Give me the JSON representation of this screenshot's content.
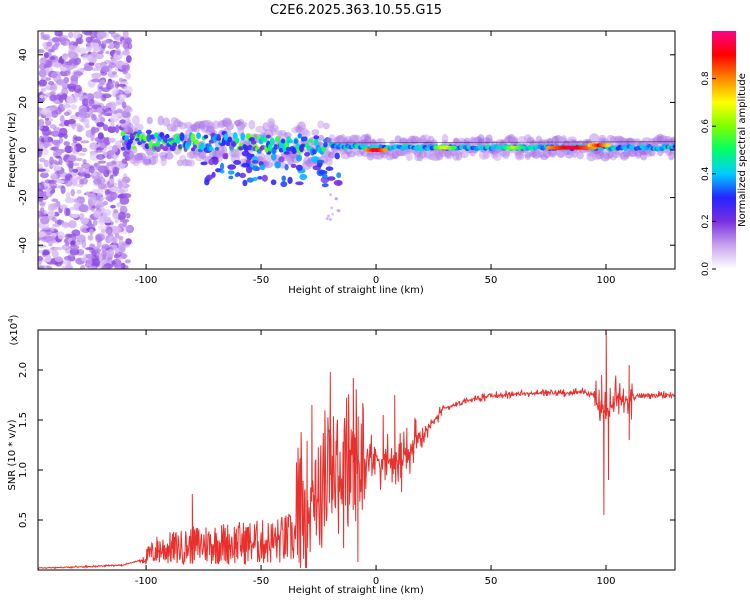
{
  "title": "C2E6.2025.363.10.55.G15",
  "chart_data": [
    {
      "type": "heatmap",
      "xlabel": "Height of straight line (km)",
      "ylabel": "Frequency (Hz)",
      "xlim": [
        -147,
        130
      ],
      "ylim": [
        -50,
        50
      ],
      "xticks": [
        -100,
        -50,
        0,
        50,
        100
      ],
      "yticks": [
        -40,
        -20,
        0,
        20,
        40
      ],
      "colorbar": {
        "label": "Normalized spectral amplitude",
        "range": [
          0,
          1
        ],
        "ticks": [
          0.0,
          0.2,
          0.4,
          0.6,
          0.8
        ],
        "colors": [
          "#ffffff",
          "#c9a2ef",
          "#7a2fe0",
          "#2424ff",
          "#00ccff",
          "#00ff66",
          "#7fff00",
          "#ffff00",
          "#ff8800",
          "#ff0000",
          "#ff0088"
        ]
      },
      "band_center_hz": [
        [
          -147,
          5
        ],
        [
          -110,
          4
        ],
        [
          -60,
          3
        ],
        [
          -25,
          2
        ],
        [
          0,
          1
        ],
        [
          50,
          1
        ],
        [
          100,
          1
        ],
        [
          130,
          1
        ]
      ],
      "band_peaks": [
        {
          "x": 0,
          "freq_hz": 0,
          "amplitude": 0.95
        },
        {
          "x": 30,
          "freq_hz": 1,
          "amplitude": 0.7
        },
        {
          "x": 60,
          "freq_hz": 1,
          "amplitude": 0.65
        },
        {
          "x": 85,
          "freq_hz": 1,
          "amplitude": 0.95
        },
        {
          "x": 97,
          "freq_hz": 2,
          "amplitude": 0.9
        }
      ]
    },
    {
      "type": "line",
      "xlabel": "Height of straight line (km)",
      "ylabel": "SNR (10 * v/v)",
      "y_scale_label": "(x10",
      "y_scale_exponent": "4",
      "xlim": [
        -147,
        130
      ],
      "ylim": [
        0,
        2.4
      ],
      "xticks": [
        -100,
        -50,
        0,
        50,
        100
      ],
      "yticks": [
        0.5,
        1.0,
        1.5,
        2.0
      ],
      "ytick_labels": [
        "0.5",
        "1.0",
        "1.5",
        "2.0"
      ],
      "series": [
        {
          "name": "SNR",
          "color": "#e8302d",
          "points": [
            [
              -147,
              0.02
            ],
            [
              -130,
              0.03
            ],
            [
              -110,
              0.05
            ],
            [
              -102,
              0.1
            ],
            [
              -95,
              0.28
            ],
            [
              -85,
              0.32
            ],
            [
              -75,
              0.38
            ],
            [
              -60,
              0.4
            ],
            [
              -45,
              0.42
            ],
            [
              -35,
              0.5
            ],
            [
              -28,
              0.78
            ],
            [
              -20,
              0.95
            ],
            [
              -12,
              1.05
            ],
            [
              -6,
              1.12
            ],
            [
              0,
              1.12
            ],
            [
              5,
              1.1
            ],
            [
              10,
              1.08
            ],
            [
              15,
              1.2
            ],
            [
              20,
              1.35
            ],
            [
              25,
              1.5
            ],
            [
              30,
              1.62
            ],
            [
              40,
              1.7
            ],
            [
              50,
              1.74
            ],
            [
              60,
              1.76
            ],
            [
              75,
              1.77
            ],
            [
              90,
              1.78
            ],
            [
              95,
              1.75
            ],
            [
              100,
              1.55
            ],
            [
              105,
              1.72
            ],
            [
              115,
              1.74
            ],
            [
              130,
              1.75
            ]
          ],
          "spikes": [
            [
              -80,
              0.76
            ],
            [
              -28,
              1.65
            ],
            [
              -20,
              1.98
            ],
            [
              -10,
              1.92
            ],
            [
              -30,
              0.22
            ],
            [
              -8,
              0.08
            ],
            [
              3,
              1.55
            ],
            [
              8,
              1.75
            ],
            [
              11,
              0.78
            ],
            [
              99,
              0.55
            ],
            [
              100,
              2.38
            ],
            [
              98,
              1.95
            ],
            [
              101,
              0.9
            ],
            [
              110,
              2.05
            ],
            [
              110,
              1.3
            ]
          ]
        }
      ]
    }
  ]
}
